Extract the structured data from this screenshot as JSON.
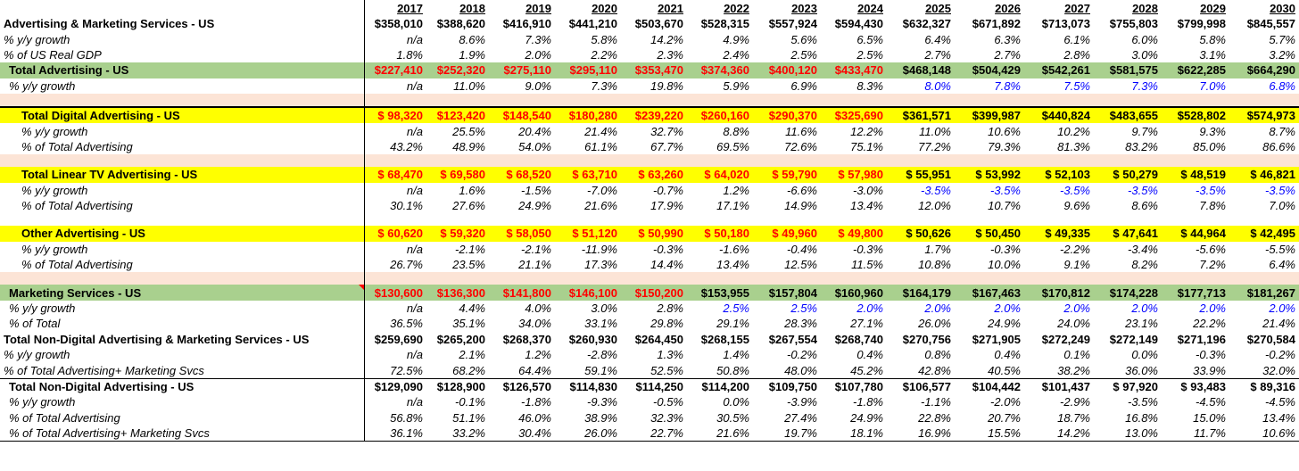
{
  "years": [
    "2017",
    "2018",
    "2019",
    "2020",
    "2021",
    "2022",
    "2023",
    "2024",
    "2025",
    "2026",
    "2027",
    "2028",
    "2029",
    "2030"
  ],
  "rows": [
    {
      "type": "normal-bold",
      "label": "Advertising & Marketing Services - US",
      "values": [
        "$358,010",
        "$388,620",
        "$416,910",
        "$441,210",
        "$503,670",
        "$528,315",
        "$557,924",
        "$594,430",
        "$632,327",
        "$671,892",
        "$713,073",
        "$755,803",
        "$799,998",
        "$845,557"
      ],
      "colors": []
    },
    {
      "type": "ital",
      "label": "% y/y growth",
      "values": [
        "n/a",
        "8.6%",
        "7.3%",
        "5.8%",
        "14.2%",
        "4.9%",
        "5.6%",
        "6.5%",
        "6.4%",
        "6.3%",
        "6.1%",
        "6.0%",
        "5.8%",
        "5.7%"
      ],
      "colors": []
    },
    {
      "type": "ital",
      "label": "% of US Real GDP",
      "values": [
        "1.8%",
        "1.9%",
        "2.0%",
        "2.2%",
        "2.3%",
        "2.4%",
        "2.5%",
        "2.5%",
        "2.7%",
        "2.7%",
        "2.8%",
        "3.0%",
        "3.1%",
        "3.2%"
      ],
      "colors": []
    },
    {
      "type": "green-bold-indent1",
      "label": "Total Advertising - US",
      "values": [
        "$227,410",
        "$252,320",
        "$275,110",
        "$295,110",
        "$353,470",
        "$374,360",
        "$400,120",
        "$433,470",
        "$468,148",
        "$504,429",
        "$542,261",
        "$581,575",
        "$622,285",
        "$664,290"
      ],
      "colors": [
        "red",
        "red",
        "red",
        "red",
        "red",
        "red",
        "red",
        "red",
        "",
        "",
        "",
        "",
        "",
        ""
      ]
    },
    {
      "type": "ital-indent1",
      "label": "% y/y growth",
      "values": [
        "n/a",
        "11.0%",
        "9.0%",
        "7.3%",
        "19.8%",
        "5.9%",
        "6.9%",
        "8.3%",
        "8.0%",
        "7.8%",
        "7.5%",
        "7.3%",
        "7.0%",
        "6.8%"
      ],
      "colors": [
        "",
        "",
        "",
        "",
        "",
        "",
        "",
        "",
        "blue",
        "blue",
        "blue",
        "blue",
        "blue",
        "blue"
      ]
    },
    {
      "type": "peach",
      "label": "",
      "values": [],
      "colors": []
    },
    {
      "type": "yellow-bold-indent2-top",
      "label": "Total Digital Advertising - US",
      "values": [
        "$  98,320",
        "$123,420",
        "$148,540",
        "$180,280",
        "$239,220",
        "$260,160",
        "$290,370",
        "$325,690",
        "$361,571",
        "$399,987",
        "$440,824",
        "$483,655",
        "$528,802",
        "$574,973"
      ],
      "colors": [
        "red",
        "red",
        "red",
        "red",
        "red",
        "red",
        "red",
        "red",
        "",
        "",
        "",
        "",
        "",
        ""
      ]
    },
    {
      "type": "ital-indent2",
      "label": "% y/y growth",
      "values": [
        "n/a",
        "25.5%",
        "20.4%",
        "21.4%",
        "32.7%",
        "8.8%",
        "11.6%",
        "12.2%",
        "11.0%",
        "10.6%",
        "10.2%",
        "9.7%",
        "9.3%",
        "8.7%"
      ],
      "colors": []
    },
    {
      "type": "ital-indent2",
      "label": "% of Total Advertising",
      "values": [
        "43.2%",
        "48.9%",
        "54.0%",
        "61.1%",
        "67.7%",
        "69.5%",
        "72.6%",
        "75.1%",
        "77.2%",
        "79.3%",
        "81.3%",
        "83.2%",
        "85.0%",
        "86.6%"
      ],
      "colors": []
    },
    {
      "type": "peach",
      "label": "",
      "values": [],
      "colors": []
    },
    {
      "type": "yellow-bold-indent2",
      "label": "Total Linear TV Advertising - US",
      "values": [
        "$  68,470",
        "$  69,580",
        "$  68,520",
        "$  63,710",
        "$  63,260",
        "$  64,020",
        "$  59,790",
        "$  57,980",
        "$  55,951",
        "$  53,992",
        "$  52,103",
        "$  50,279",
        "$  48,519",
        "$  46,821"
      ],
      "colors": [
        "red",
        "red",
        "red",
        "red",
        "red",
        "red",
        "red",
        "red",
        "",
        "",
        "",
        "",
        "",
        ""
      ]
    },
    {
      "type": "ital-indent2",
      "label": "% y/y growth",
      "values": [
        "n/a",
        "1.6%",
        "-1.5%",
        "-7.0%",
        "-0.7%",
        "1.2%",
        "-6.6%",
        "-3.0%",
        "-3.5%",
        "-3.5%",
        "-3.5%",
        "-3.5%",
        "-3.5%",
        "-3.5%"
      ],
      "colors": [
        "",
        "",
        "",
        "",
        "",
        "",
        "",
        "",
        "blue",
        "blue",
        "blue",
        "blue",
        "blue",
        "blue"
      ]
    },
    {
      "type": "ital-indent2",
      "label": "% of Total Advertising",
      "values": [
        "30.1%",
        "27.6%",
        "24.9%",
        "21.6%",
        "17.9%",
        "17.1%",
        "14.9%",
        "13.4%",
        "12.0%",
        "10.7%",
        "9.6%",
        "8.6%",
        "7.8%",
        "7.0%"
      ],
      "colors": []
    },
    {
      "type": "blank",
      "label": "",
      "values": [],
      "colors": []
    },
    {
      "type": "yellow-bold-indent2",
      "label": "Other Advertising - US",
      "values": [
        "$  60,620",
        "$  59,320",
        "$  58,050",
        "$  51,120",
        "$  50,990",
        "$  50,180",
        "$  49,960",
        "$  49,800",
        "$  50,626",
        "$  50,450",
        "$  49,335",
        "$  47,641",
        "$  44,964",
        "$  42,495"
      ],
      "colors": [
        "red",
        "red",
        "red",
        "red",
        "red",
        "red",
        "red",
        "red",
        "",
        "",
        "",
        "",
        "",
        ""
      ]
    },
    {
      "type": "ital-indent2",
      "label": "% y/y growth",
      "values": [
        "n/a",
        "-2.1%",
        "-2.1%",
        "-11.9%",
        "-0.3%",
        "-1.6%",
        "-0.4%",
        "-0.3%",
        "1.7%",
        "-0.3%",
        "-2.2%",
        "-3.4%",
        "-5.6%",
        "-5.5%"
      ],
      "colors": []
    },
    {
      "type": "ital-indent2",
      "label": "% of Total Advertising",
      "values": [
        "26.7%",
        "23.5%",
        "21.1%",
        "17.3%",
        "14.4%",
        "13.4%",
        "12.5%",
        "11.5%",
        "10.8%",
        "10.0%",
        "9.1%",
        "8.2%",
        "7.2%",
        "6.4%"
      ],
      "colors": []
    },
    {
      "type": "peach",
      "label": "",
      "values": [],
      "colors": []
    },
    {
      "type": "green-bold-indent1-mark",
      "label": "Marketing Services - US",
      "values": [
        "$130,600",
        "$136,300",
        "$141,800",
        "$146,100",
        "$150,200",
        "$153,955",
        "$157,804",
        "$160,960",
        "$164,179",
        "$167,463",
        "$170,812",
        "$174,228",
        "$177,713",
        "$181,267"
      ],
      "colors": [
        "red",
        "red",
        "red",
        "red",
        "red",
        "",
        "",
        "",
        "",
        "",
        "",
        "",
        "",
        ""
      ]
    },
    {
      "type": "ital-indent1",
      "label": "% y/y growth",
      "values": [
        "n/a",
        "4.4%",
        "4.0%",
        "3.0%",
        "2.8%",
        "2.5%",
        "2.5%",
        "2.0%",
        "2.0%",
        "2.0%",
        "2.0%",
        "2.0%",
        "2.0%",
        "2.0%"
      ],
      "colors": [
        "",
        "",
        "",
        "",
        "",
        "blue",
        "blue",
        "blue",
        "blue",
        "blue",
        "blue",
        "blue",
        "blue",
        "blue"
      ]
    },
    {
      "type": "ital-indent1",
      "label": "% of Total",
      "values": [
        "36.5%",
        "35.1%",
        "34.0%",
        "33.1%",
        "29.8%",
        "29.1%",
        "28.3%",
        "27.1%",
        "26.0%",
        "24.9%",
        "24.0%",
        "23.1%",
        "22.2%",
        "21.4%"
      ],
      "colors": []
    },
    {
      "type": "normal-bold",
      "label": "Total Non-Digital Advertising & Marketing Services - US",
      "values": [
        "$259,690",
        "$265,200",
        "$268,370",
        "$260,930",
        "$264,450",
        "$268,155",
        "$267,554",
        "$268,740",
        "$270,756",
        "$271,905",
        "$272,249",
        "$272,149",
        "$271,196",
        "$270,584"
      ],
      "colors": []
    },
    {
      "type": "ital",
      "label": "% y/y growth",
      "values": [
        "n/a",
        "2.1%",
        "1.2%",
        "-2.8%",
        "1.3%",
        "1.4%",
        "-0.2%",
        "0.4%",
        "0.8%",
        "0.4%",
        "0.1%",
        "0.0%",
        "-0.3%",
        "-0.2%"
      ],
      "colors": []
    },
    {
      "type": "ital-bottom",
      "label": "% of Total Advertising+ Marketing Svcs",
      "values": [
        "72.5%",
        "68.2%",
        "64.4%",
        "59.1%",
        "52.5%",
        "50.8%",
        "48.0%",
        "45.2%",
        "42.8%",
        "40.5%",
        "38.2%",
        "36.0%",
        "33.9%",
        "32.0%"
      ],
      "colors": []
    },
    {
      "type": "normal-bold-indent1",
      "label": "Total Non-Digital Advertising - US",
      "values": [
        "$129,090",
        "$128,900",
        "$126,570",
        "$114,830",
        "$114,250",
        "$114,200",
        "$109,750",
        "$107,780",
        "$106,577",
        "$104,442",
        "$101,437",
        "$  97,920",
        "$  93,483",
        "$  89,316"
      ],
      "colors": []
    },
    {
      "type": "ital-indent1",
      "label": "% y/y growth",
      "values": [
        "n/a",
        "-0.1%",
        "-1.8%",
        "-9.3%",
        "-0.5%",
        "0.0%",
        "-3.9%",
        "-1.8%",
        "-1.1%",
        "-2.0%",
        "-2.9%",
        "-3.5%",
        "-4.5%",
        "-4.5%"
      ],
      "colors": []
    },
    {
      "type": "ital-indent1",
      "label": "% of Total Advertising",
      "values": [
        "56.8%",
        "51.1%",
        "46.0%",
        "38.9%",
        "32.3%",
        "30.5%",
        "27.4%",
        "24.9%",
        "22.8%",
        "20.7%",
        "18.7%",
        "16.8%",
        "15.0%",
        "13.4%"
      ],
      "colors": []
    },
    {
      "type": "ital-indent1-bottom",
      "label": "% of Total Advertising+ Marketing Svcs",
      "values": [
        "36.1%",
        "33.2%",
        "30.4%",
        "26.0%",
        "22.7%",
        "21.6%",
        "19.7%",
        "18.1%",
        "16.9%",
        "15.5%",
        "14.2%",
        "13.0%",
        "11.7%",
        "10.6%"
      ],
      "colors": []
    }
  ]
}
